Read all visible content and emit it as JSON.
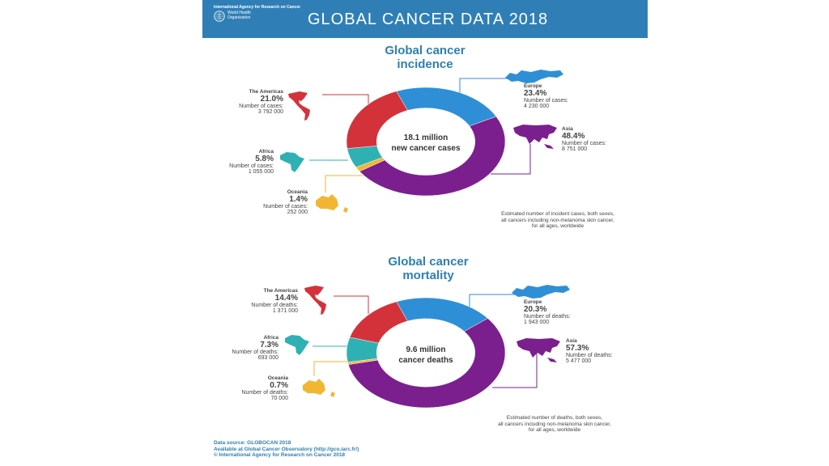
{
  "header": {
    "org": "International Agency for Research on Cancer",
    "who": "World Health Organization",
    "title": "GLOBAL CANCER DATA 2018"
  },
  "incidence": {
    "title_line1": "Global cancer",
    "title_line2": "incidence",
    "center_line1": "18.1 million",
    "center_line2": "new cancer cases",
    "note_line1": "Estimated number of incident cases, both sexes,",
    "note_line2": "all cancers including non-melanoma skin cancer,",
    "note_line3": "for all ages, worldwide",
    "regions": {
      "americas": {
        "name": "The Americas",
        "pct": "21.0%",
        "label": "Number of cases:",
        "count": "3 792 000"
      },
      "europe": {
        "name": "Europe",
        "pct": "23.4%",
        "label": "Number of cases:",
        "count": "4 230 000"
      },
      "asia": {
        "name": "Asia",
        "pct": "48.4%",
        "label": "Number of cases:",
        "count": "8 751 000"
      },
      "africa": {
        "name": "Africa",
        "pct": "5.8%",
        "label": "Number of cases:",
        "count": "1 055 000"
      },
      "oceania": {
        "name": "Oceania",
        "pct": "1.4%",
        "label": "Number of cases:",
        "count": "252 000"
      }
    }
  },
  "mortality": {
    "title_line1": "Global cancer",
    "title_line2": "mortality",
    "center_line1": "9.6 million",
    "center_line2": "cancer deaths",
    "note_line1": "Estimated number of deaths, both sexes,",
    "note_line2": "all cancers including non-melanoma skin cancer,",
    "note_line3": "for all ages, worldwide",
    "regions": {
      "americas": {
        "name": "The Americas",
        "pct": "14.4%",
        "label": "Number of deaths:",
        "count": "1 371 000"
      },
      "europe": {
        "name": "Europe",
        "pct": "20.3%",
        "label": "Number of deaths:",
        "count": "1 943 000"
      },
      "asia": {
        "name": "Asia",
        "pct": "57.3%",
        "label": "Number of deaths:",
        "count": "5 477 000"
      },
      "africa": {
        "name": "Africa",
        "pct": "7.3%",
        "label": "Number of deaths:",
        "count": "693 000"
      },
      "oceania": {
        "name": "Oceania",
        "pct": "0.7%",
        "label": "Number of deaths:",
        "count": "70 000"
      }
    }
  },
  "footer": {
    "line1": "Data source: GLOBOCAN 2018",
    "line2": "Available at Global Cancer Observatory (http://gco.iarc.fr/)",
    "line3": "© International Agency for Research on Cancer 2018"
  },
  "colors": {
    "header": "#2f7fb6",
    "europe": "#2e8fd6",
    "asia": "#7b1f8f",
    "americas": "#d4323a",
    "africa": "#2fb1b4",
    "oceania": "#f2b632"
  },
  "chart_data": [
    {
      "type": "pie",
      "title": "Global cancer incidence",
      "categories": [
        "Europe",
        "Asia",
        "Oceania",
        "Africa",
        "The Americas"
      ],
      "values": [
        23.4,
        48.4,
        1.4,
        5.8,
        21.0
      ],
      "counts": [
        4230000,
        8751000,
        252000,
        1055000,
        3792000
      ]
    },
    {
      "type": "pie",
      "title": "Global cancer mortality",
      "categories": [
        "Europe",
        "Asia",
        "Oceania",
        "Africa",
        "The Americas"
      ],
      "values": [
        20.3,
        57.3,
        0.7,
        7.3,
        14.4
      ],
      "counts": [
        1943000,
        5477000,
        70000,
        693000,
        1371000
      ]
    }
  ]
}
